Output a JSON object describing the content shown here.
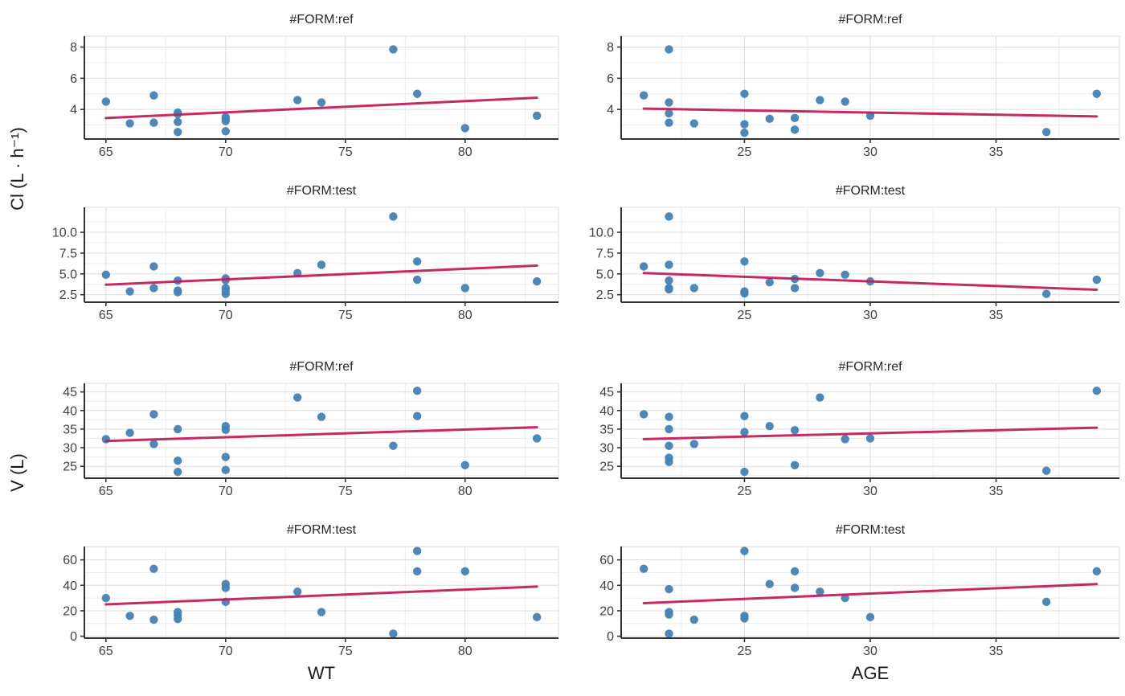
{
  "figure": {
    "y_axis_title_top": "Cl (L · h⁻¹)",
    "y_axis_title_bottom": "V (L)",
    "x_axis_title_left": "WT",
    "x_axis_title_right": "AGE"
  },
  "colors": {
    "background": "#FFFFFF",
    "point": "#4682B4",
    "trend_line": "#C41E5C",
    "grid_major": "#DCDCDC",
    "grid_minor": "#ECECEC",
    "panel_border": "#DCDCDC",
    "axis_line": "#333333",
    "tick_label": "#404040",
    "strip_text": "#262626",
    "axis_title": "#1A1A1A"
  },
  "chart_data": [
    {
      "type": "scatter",
      "title": "#FORM:ref",
      "y_variable": "Cl",
      "x_variable": "WT",
      "x": [
        65,
        66,
        67,
        67,
        68,
        68,
        68,
        68,
        70,
        70,
        70,
        70,
        73,
        74,
        77,
        78,
        80,
        83
      ],
      "y": [
        4.5,
        3.1,
        4.9,
        3.15,
        3.8,
        3.7,
        3.2,
        2.55,
        3.5,
        3.4,
        3.25,
        2.6,
        4.6,
        4.45,
        7.85,
        5.0,
        2.8,
        3.6
      ],
      "trend": {
        "x": [
          65,
          83
        ],
        "y": [
          3.45,
          4.75
        ]
      },
      "xlim": [
        64.1,
        83.9
      ],
      "ylim": [
        2.1,
        8.7
      ],
      "xticks": [
        65,
        70,
        75,
        80
      ],
      "xtick_labels": [
        "65",
        "70",
        "75",
        "80"
      ],
      "yticks": [
        4,
        6,
        8
      ],
      "ytick_labels": [
        "4",
        "6",
        "8"
      ],
      "xminor": [
        67.5,
        72.5,
        77.5,
        82.5
      ],
      "yminor": [
        3,
        5,
        7
      ],
      "grid": true,
      "legend": false
    },
    {
      "type": "scatter",
      "title": "#FORM:ref",
      "y_variable": "Cl",
      "x_variable": "AGE",
      "x": [
        21,
        22,
        22,
        22,
        22,
        23,
        25,
        25,
        25,
        26,
        27,
        27,
        28,
        29,
        30,
        37,
        39
      ],
      "y": [
        4.9,
        7.85,
        4.45,
        3.75,
        3.15,
        3.1,
        5.0,
        3.05,
        2.5,
        3.4,
        3.45,
        2.7,
        4.6,
        4.5,
        3.6,
        2.55,
        5.0
      ],
      "trend": {
        "x": [
          21,
          39
        ],
        "y": [
          4.05,
          3.55
        ]
      },
      "xlim": [
        20.1,
        39.9
      ],
      "ylim": [
        2.1,
        8.7
      ],
      "xticks": [
        25,
        30,
        35
      ],
      "xtick_labels": [
        "25",
        "30",
        "35"
      ],
      "yticks": [
        4,
        6,
        8
      ],
      "ytick_labels": [
        "4",
        "6",
        "8"
      ],
      "xminor": [
        22.5,
        27.5,
        32.5,
        37.5
      ],
      "yminor": [
        3,
        5,
        7
      ],
      "grid": true,
      "legend": false
    },
    {
      "type": "scatter",
      "title": "#FORM:test",
      "y_variable": "Cl",
      "x_variable": "WT",
      "x": [
        65,
        66,
        67,
        67,
        68,
        68,
        68,
        70,
        70,
        70,
        70,
        70,
        73,
        74,
        77,
        78,
        78,
        80,
        83
      ],
      "y": [
        4.9,
        2.9,
        5.9,
        3.3,
        4.2,
        3.0,
        2.8,
        4.45,
        4.25,
        3.3,
        2.95,
        2.6,
        5.1,
        6.1,
        11.9,
        6.5,
        4.3,
        3.3,
        4.1
      ],
      "trend": {
        "x": [
          65,
          83
        ],
        "y": [
          3.7,
          6.0
        ]
      },
      "xlim": [
        64.1,
        83.9
      ],
      "ylim": [
        1.6,
        13.0
      ],
      "xticks": [
        65,
        70,
        75,
        80
      ],
      "xtick_labels": [
        "65",
        "70",
        "75",
        "80"
      ],
      "yticks": [
        2.5,
        5.0,
        7.5,
        10.0
      ],
      "ytick_labels": [
        "2.5",
        "5.0",
        "7.5",
        "10.0"
      ],
      "xminor": [
        67.5,
        72.5,
        77.5,
        82.5
      ],
      "yminor": [
        3.75,
        6.25,
        8.75,
        11.25
      ],
      "grid": true,
      "legend": false
    },
    {
      "type": "scatter",
      "title": "#FORM:test",
      "y_variable": "Cl",
      "x_variable": "AGE",
      "x": [
        21,
        22,
        22,
        22,
        22,
        22,
        23,
        25,
        25,
        25,
        26,
        27,
        27,
        28,
        29,
        30,
        37,
        39
      ],
      "y": [
        5.9,
        11.9,
        6.1,
        4.2,
        3.3,
        3.15,
        3.3,
        6.5,
        2.9,
        2.65,
        4.0,
        4.4,
        3.3,
        5.1,
        4.9,
        4.1,
        2.6,
        4.3
      ],
      "trend": {
        "x": [
          21,
          39
        ],
        "y": [
          5.1,
          3.1
        ]
      },
      "xlim": [
        20.1,
        39.9
      ],
      "ylim": [
        1.6,
        13.0
      ],
      "xticks": [
        25,
        30,
        35
      ],
      "xtick_labels": [
        "25",
        "30",
        "35"
      ],
      "yticks": [
        2.5,
        5.0,
        7.5,
        10.0
      ],
      "ytick_labels": [
        "2.5",
        "5.0",
        "7.5",
        "10.0"
      ],
      "xminor": [
        22.5,
        27.5,
        32.5,
        37.5
      ],
      "yminor": [
        3.75,
        6.25,
        8.75,
        11.25
      ],
      "grid": true,
      "legend": false
    },
    {
      "type": "scatter",
      "title": "#FORM:ref",
      "y_variable": "V",
      "x_variable": "WT",
      "x": [
        65,
        66,
        67,
        67,
        68,
        68,
        68,
        70,
        70,
        70,
        70,
        73,
        74,
        77,
        78,
        78,
        80,
        83
      ],
      "y": [
        32.3,
        34.0,
        39.0,
        31.0,
        35.0,
        26.5,
        23.5,
        35.8,
        34.8,
        27.5,
        24.0,
        43.5,
        38.3,
        30.5,
        45.3,
        38.5,
        25.3,
        32.5
      ],
      "trend": {
        "x": [
          65,
          83
        ],
        "y": [
          31.8,
          35.5
        ]
      },
      "xlim": [
        64.1,
        83.9
      ],
      "ylim": [
        21.8,
        47.3
      ],
      "xticks": [
        65,
        70,
        75,
        80
      ],
      "xtick_labels": [
        "65",
        "70",
        "75",
        "80"
      ],
      "yticks": [
        25,
        30,
        35,
        40,
        45
      ],
      "ytick_labels": [
        "25",
        "30",
        "35",
        "40",
        "45"
      ],
      "xminor": [
        67.5,
        72.5,
        77.5,
        82.5
      ],
      "yminor": [
        22.5,
        27.5,
        32.5,
        37.5,
        42.5
      ],
      "grid": true,
      "legend": false
    },
    {
      "type": "scatter",
      "title": "#FORM:ref",
      "y_variable": "V",
      "x_variable": "AGE",
      "x": [
        21,
        22,
        22,
        22,
        22,
        22,
        23,
        25,
        25,
        25,
        26,
        27,
        27,
        28,
        29,
        30,
        37,
        39
      ],
      "y": [
        39.0,
        38.3,
        35.0,
        30.5,
        27.3,
        26.2,
        31.0,
        38.5,
        34.2,
        23.5,
        35.8,
        34.7,
        25.3,
        43.5,
        32.3,
        32.5,
        23.8,
        45.3
      ],
      "trend": {
        "x": [
          21,
          39
        ],
        "y": [
          32.3,
          35.4
        ]
      },
      "xlim": [
        20.1,
        39.9
      ],
      "ylim": [
        21.8,
        47.3
      ],
      "xticks": [
        25,
        30,
        35
      ],
      "xtick_labels": [
        "25",
        "30",
        "35"
      ],
      "yticks": [
        25,
        30,
        35,
        40,
        45
      ],
      "ytick_labels": [
        "25",
        "30",
        "35",
        "40",
        "45"
      ],
      "xminor": [
        22.5,
        27.5,
        32.5,
        37.5
      ],
      "yminor": [
        22.5,
        27.5,
        32.5,
        37.5,
        42.5
      ],
      "grid": true,
      "legend": false
    },
    {
      "type": "scatter",
      "title": "#FORM:test",
      "y_variable": "V",
      "x_variable": "WT",
      "x": [
        65,
        66,
        67,
        67,
        68,
        68,
        68,
        70,
        70,
        70,
        73,
        74,
        77,
        78,
        78,
        80,
        83
      ],
      "y": [
        30,
        16,
        53,
        13,
        19,
        16.5,
        13.5,
        41,
        38,
        27,
        35,
        19,
        2,
        67,
        51,
        51,
        15
      ],
      "trend": {
        "x": [
          65,
          83
        ],
        "y": [
          25,
          39
        ]
      },
      "xlim": [
        64.1,
        83.9
      ],
      "ylim": [
        -1.5,
        70.5
      ],
      "xticks": [
        65,
        70,
        75,
        80
      ],
      "xtick_labels": [
        "65",
        "70",
        "75",
        "80"
      ],
      "yticks": [
        0,
        20,
        40,
        60
      ],
      "ytick_labels": [
        "0",
        "20",
        "40",
        "60"
      ],
      "xminor": [
        67.5,
        72.5,
        77.5,
        82.5
      ],
      "yminor": [
        10,
        30,
        50,
        70
      ],
      "grid": true,
      "legend": false
    },
    {
      "type": "scatter",
      "title": "#FORM:test",
      "y_variable": "V",
      "x_variable": "AGE",
      "x": [
        21,
        22,
        22,
        22,
        22,
        23,
        25,
        25,
        25,
        26,
        27,
        27,
        28,
        29,
        30,
        37,
        39
      ],
      "y": [
        53,
        37,
        19,
        17,
        2,
        13,
        67,
        16,
        14,
        41,
        51,
        38,
        35,
        30,
        15,
        27,
        51
      ],
      "trend": {
        "x": [
          21,
          39
        ],
        "y": [
          26,
          41
        ]
      },
      "xlim": [
        20.1,
        39.9
      ],
      "ylim": [
        -1.5,
        70.5
      ],
      "xticks": [
        25,
        30,
        35
      ],
      "xtick_labels": [
        "25",
        "30",
        "35"
      ],
      "yticks": [
        0,
        20,
        40,
        60
      ],
      "ytick_labels": [
        "0",
        "20",
        "40",
        "60"
      ],
      "xminor": [
        22.5,
        27.5,
        32.5,
        37.5
      ],
      "yminor": [
        10,
        30,
        50,
        70
      ],
      "grid": true,
      "legend": false
    }
  ]
}
